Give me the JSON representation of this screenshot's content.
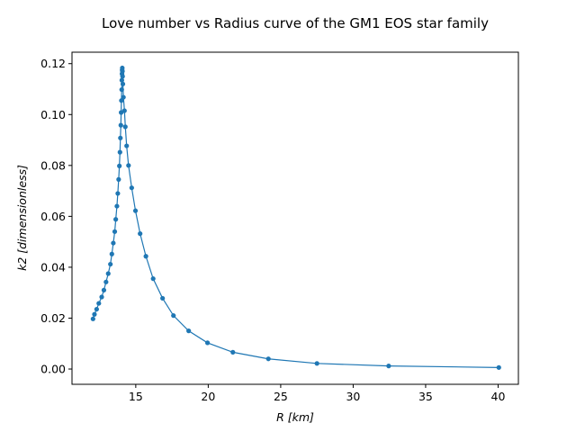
{
  "chart_data": {
    "type": "line",
    "title": "Love number vs Radius curve of the GM1 EOS star family",
    "xlabel": "R [km]",
    "ylabel": "k2 [dimensionless]",
    "xlim": [
      10.6,
      41.4
    ],
    "ylim": [
      -0.006,
      0.1245
    ],
    "x_ticks": [
      15,
      20,
      25,
      30,
      35,
      40
    ],
    "x_tick_labels": [
      "15",
      "20",
      "25",
      "30",
      "35",
      "40"
    ],
    "y_ticks": [
      0.0,
      0.02,
      0.04,
      0.06,
      0.08,
      0.1,
      0.12
    ],
    "y_tick_labels": [
      "0.00",
      "0.02",
      "0.04",
      "0.06",
      "0.08",
      "0.10",
      "0.12"
    ],
    "grid": false,
    "legend": "none",
    "colors": {
      "series": "#1f77b4",
      "axes": "#000000",
      "background": "#ffffff"
    },
    "series": [
      {
        "markers": true,
        "points": [
          [
            12.05,
            0.0197
          ],
          [
            12.15,
            0.0215
          ],
          [
            12.3,
            0.0235
          ],
          [
            12.45,
            0.0258
          ],
          [
            12.65,
            0.0283
          ],
          [
            12.8,
            0.031
          ],
          [
            12.95,
            0.0342
          ],
          [
            13.1,
            0.0375
          ],
          [
            13.25,
            0.0412
          ],
          [
            13.35,
            0.0452
          ],
          [
            13.45,
            0.0495
          ],
          [
            13.55,
            0.054
          ],
          [
            13.62,
            0.0588
          ],
          [
            13.7,
            0.064
          ],
          [
            13.76,
            0.069
          ],
          [
            13.82,
            0.0745
          ],
          [
            13.87,
            0.0798
          ],
          [
            13.91,
            0.0852
          ],
          [
            13.94,
            0.0908
          ],
          [
            13.97,
            0.0958
          ],
          [
            13.99,
            0.1008
          ],
          [
            14.01,
            0.1055
          ],
          [
            14.03,
            0.1098
          ],
          [
            14.04,
            0.1135
          ],
          [
            14.05,
            0.116
          ],
          [
            14.06,
            0.1175
          ],
          [
            14.07,
            0.1183
          ],
          [
            14.08,
            0.117
          ],
          [
            14.09,
            0.115
          ],
          [
            14.11,
            0.112
          ],
          [
            14.15,
            0.1068
          ],
          [
            14.22,
            0.1015
          ],
          [
            14.28,
            0.0952
          ],
          [
            14.37,
            0.0877
          ],
          [
            14.5,
            0.08
          ],
          [
            14.72,
            0.0712
          ],
          [
            14.98,
            0.0622
          ],
          [
            15.3,
            0.0532
          ],
          [
            15.7,
            0.0443
          ],
          [
            16.2,
            0.0355
          ],
          [
            16.85,
            0.0278
          ],
          [
            17.6,
            0.021
          ],
          [
            18.65,
            0.015
          ],
          [
            19.95,
            0.0103
          ],
          [
            21.7,
            0.0066
          ],
          [
            24.15,
            0.004
          ],
          [
            27.5,
            0.0022
          ],
          [
            32.45,
            0.0012
          ],
          [
            40.05,
            0.0006
          ]
        ]
      }
    ]
  }
}
